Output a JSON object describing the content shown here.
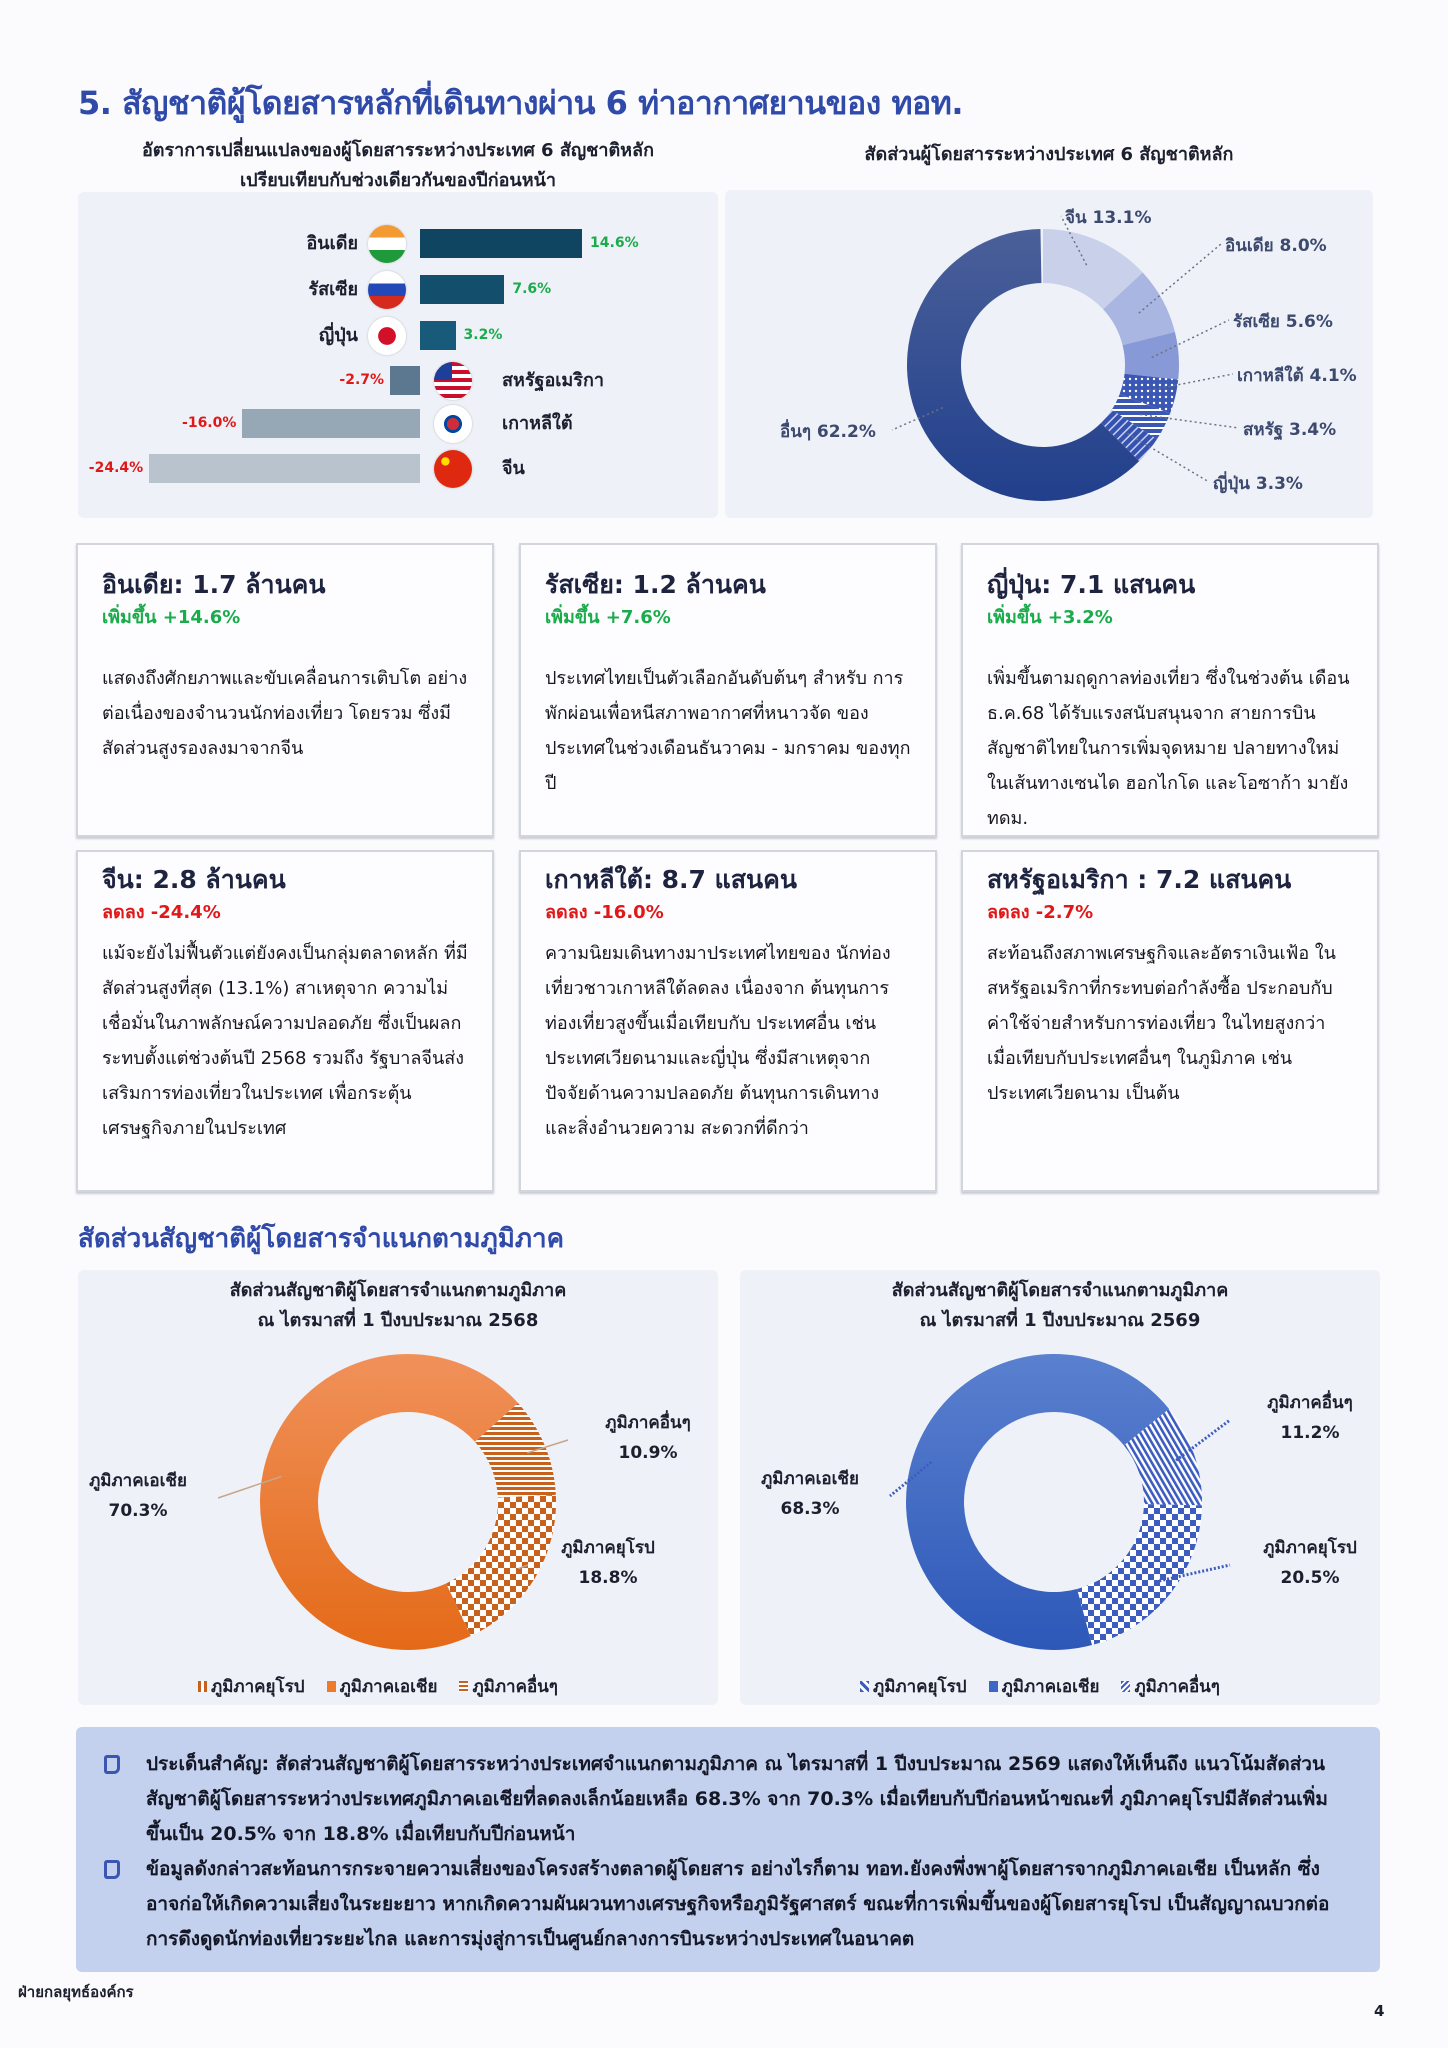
{
  "title": "5. สัญชาติผู้โดยสารหลักที่เดินทางผ่าน 6 ท่าอากาศยานของ ทอท.",
  "bar_chart": {
    "subtitle_line1": "อัตราการเปลี่ยนแปลงของผู้โดยสารระหว่างประเทศ 6 สัญชาติหลัก",
    "subtitle_line2": "เปรียบเทียบกับช่วงเดียวกันของปีก่อนหน้า",
    "items": [
      {
        "country": "อินเดีย",
        "label": "14.6%",
        "value": 14.6,
        "color": "#0f4560",
        "flag": "india-flag"
      },
      {
        "country": "รัสเซีย",
        "label": "7.6%",
        "value": 7.6,
        "color": "#134f6c",
        "flag": "russia-flag"
      },
      {
        "country": "ญี่ปุ่น",
        "label": "3.2%",
        "value": 3.2,
        "color": "#175a7a",
        "flag": "japan-flag"
      },
      {
        "country": "สหรัฐอเมริกา",
        "label": "-2.7%",
        "value": -2.7,
        "color": "#5b7890",
        "flag": "usa-flag"
      },
      {
        "country": "เกาหลีใต้",
        "label": "-16.0%",
        "value": -16.0,
        "color": "#96a8b6",
        "flag": "korea-flag"
      },
      {
        "country": "จีน",
        "label": "-24.4%",
        "value": -24.4,
        "color": "#b9c3cd",
        "flag": "china-flag"
      }
    ],
    "positive_color": "#1aab4b",
    "negative_color": "#e01818"
  },
  "share_chart": {
    "subtitle": "สัดส่วนผู้โดยสารระหว่างประเทศ 6 สัญชาติหลัก",
    "slices": [
      {
        "name": "จีน",
        "label": "จีน  13.1%",
        "value": 13.1,
        "color": "#c9d0ea"
      },
      {
        "name": "อินเดีย",
        "label": "อินเดีย 8.0%",
        "value": 8.0,
        "color": "#a9b6e1"
      },
      {
        "name": "รัสเซีย",
        "label": "รัสเซีย 5.6%",
        "value": 5.6,
        "color": "#8799d6"
      },
      {
        "name": "เกาหลีใต้",
        "label": "เกาหลีใต้ 4.1%",
        "value": 4.1,
        "color": "#3b57b4",
        "pattern": "dots"
      },
      {
        "name": "สหรัฐ",
        "label": "สหรัฐ 3.4%",
        "value": 3.4,
        "color": "#3b57b4",
        "pattern": "stripes"
      },
      {
        "name": "ญี่ปุ่น",
        "label": "ญี่ปุ่น  3.3%",
        "value": 3.3,
        "color": "#3552b0",
        "pattern": "stripes-light"
      },
      {
        "name": "อื่นๆ",
        "label": "อื่นๆ 62.2%",
        "value": 62.2,
        "color": "#2a4590"
      }
    ]
  },
  "cards": [
    {
      "title": "อินเดีย: 1.7 ล้านคน",
      "change": "เพิ่มขึ้น +14.6%",
      "trend": "up",
      "body": "แสดงถึงศักยภาพและขับเคลื่อนการเติบโต อย่างต่อเนื่องของจำนวนนักท่องเที่ยว โดยรวม ซึ่งมีสัดส่วนสูงรองลงมาจากจีน"
    },
    {
      "title": "รัสเซีย: 1.2 ล้านคน",
      "change": "เพิ่มขึ้น +7.6%",
      "trend": "up",
      "body": "ประเทศไทยเป็นตัวเลือกอันดับต้นๆ สำหรับ การพักผ่อนเพื่อหนีสภาพอากาศที่หนาวจัด ของประเทศในช่วงเดือนธันวาคม - มกราคม ของทุกปี"
    },
    {
      "title": "ญี่ปุ่น: 7.1 แสนคน",
      "change": "เพิ่มขึ้น +3.2%",
      "trend": "up",
      "body": "เพิ่มขึ้นตามฤดูกาลท่องเที่ยว  ซึ่งในช่วงต้น เดือน ธ.ค.68 ได้รับแรงสนับสนุนจาก สายการบินสัญชาติไทยในการเพิ่มจุดหมาย ปลายทางใหม่ ในเส้นทางเซนได ฮอกไกโด และโอซาก้า มายัง ทดม."
    },
    {
      "title": "จีน: 2.8 ล้านคน",
      "change": "ลดลง -24.4%",
      "trend": "down",
      "body": "แม้จะยังไม่ฟื้นตัวแต่ยังคงเป็นกลุ่มตลาดหลัก ที่มีสัดส่วนสูงที่สุด (13.1%) สาเหตุจาก ความไม่เชื่อมั่นในภาพลักษณ์ความปลอดภัย ซึ่งเป็นผลกระทบตั้งแต่ช่วงต้นปี 2568 รวมถึง รัฐบาลจีนส่งเสริมการท่องเที่ยวในประเทศ เพื่อกระตุ้นเศรษฐกิจภายในประเทศ"
    },
    {
      "title": "เกาหลีใต้: 8.7 แสนคน",
      "change": "ลดลง -16.0%",
      "trend": "down",
      "body": "ความนิยมเดินทางมาประเทศไทยของ นักท่องเที่ยวชาวเกาหลีใต้ลดลง เนื่องจาก ต้นทุนการท่องเที่ยวสูงขึ้นเมื่อเทียบกับ ประเทศอื่น เช่น ประเทศเวียดนามและญี่ปุ่น ซึ่งมีสาเหตุจากปัจจัยด้านความปลอดภัย ต้นทุนการเดินทางและสิ่งอำนวยความ สะดวกที่ดีกว่า"
    },
    {
      "title": "สหรัฐอเมริกา : 7.2 แสนคน",
      "change": "ลดลง -2.7%",
      "trend": "down",
      "body": "สะท้อนถึงสภาพเศรษฐกิจและอัตราเงินเฟ้อ ในสหรัฐอเมริกาที่กระทบต่อกำลังซื้อ ประกอบกับค่าใช้จ่ายสำหรับการท่องเที่ยว ในไทยสูงกว่าเมื่อเทียบกับประเทศอื่นๆ ในภูมิภาค เช่น ประเทศเวียดนาม เป็นต้น"
    }
  ],
  "section2_title": "สัดส่วนสัญชาติผู้โดยสารจำแนกตามภูมิภาค",
  "chart_data": [
    {
      "type": "pie",
      "title": "สัดส่วนสัญชาติผู้โดยสารจำแนกตามภูมิภาค",
      "subtitle": "ณ ไตรมาสที่ 1 ปีงบประมาณ 2568",
      "slices": [
        {
          "name": "ภูมิภาคอื่นๆ",
          "value": 10.9,
          "label": "10.9%",
          "color": "#c8611c",
          "pattern": "hstripes"
        },
        {
          "name": "ภูมิภาคยุโรป",
          "value": 18.8,
          "label": "18.8%",
          "color": "#c8611c",
          "pattern": "checks"
        },
        {
          "name": "ภูมิภาคเอเชีย",
          "value": 70.3,
          "label": "70.3%",
          "color": "#ee7b2a"
        }
      ],
      "legend": [
        "ภูมิภาคยุโรป",
        "ภูมิภาคเอเชีย",
        "ภูมิภาคอื่นๆ"
      ],
      "legend_position": "bottom"
    },
    {
      "type": "pie",
      "title": "สัดส่วนสัญชาติผู้โดยสารจำแนกตามภูมิภาค",
      "subtitle": "ณ ไตรมาสที่ 1 ปีงบประมาณ 2569",
      "slices": [
        {
          "name": "ภูมิภาคอื่นๆ",
          "value": 11.2,
          "label": "11.2%",
          "color": "#3d5cc0",
          "pattern": "dstripes"
        },
        {
          "name": "ภูมิภาคยุโรป",
          "value": 20.5,
          "label": "20.5%",
          "color": "#3d5cc0",
          "pattern": "checks"
        },
        {
          "name": "ภูมิภาคเอเชีย",
          "value": 68.3,
          "label": "68.3%",
          "color": "#3f66c6"
        }
      ],
      "legend": [
        "ภูมิภาคยุโรป",
        "ภูมิภาคเอเชีย",
        "ภูมิภาคอื่นๆ"
      ],
      "legend_position": "bottom"
    }
  ],
  "key_points": [
    "ประเด็นสำคัญ: สัดส่วนสัญชาติผู้โดยสารระหว่างประเทศจำแนกตามภูมิภาค ณ  ไตรมาสที่ 1 ปีงบประมาณ 2569 แสดงให้เห็นถึง แนวโน้มสัดส่วนสัญชาติผู้โดยสารระหว่างประเทศภูมิภาคเอเชียที่ลดลงเล็กน้อยเหลือ 68.3% จาก 70.3% เมื่อเทียบกับปีก่อนหน้าขณะที่ ภูมิภาคยุโรปมีสัดส่วนเพิ่มขึ้นเป็น 20.5% จาก 18.8% เมื่อเทียบกับปีก่อนหน้า",
    "ข้อมูลดังกล่าวสะท้อนการกระจายความเสี่ยงของโครงสร้างตลาดผู้โดยสาร อย่างไรก็ตาม ทอท.ยังคงพึ่งพาผู้โดยสารจากภูมิภาคเอเชีย เป็นหลัก ซึ่งอาจก่อให้เกิดความเสี่ยงในระยะยาว หากเกิดความผันผวนทางเศรษฐกิจหรือภูมิรัฐศาสตร์ ขณะที่การเพิ่มขึ้นของผู้โดยสารยุโรป เป็นสัญญาณบวกต่อการดึงดูดนักท่องเที่ยวระยะไกล และการมุ่งสู่การเป็นศูนย์กลางการบินระหว่างประเทศในอนาคต"
  ],
  "footer": {
    "department": "ฝ่ายกลยุทธ์องค์กร",
    "page": "4"
  }
}
